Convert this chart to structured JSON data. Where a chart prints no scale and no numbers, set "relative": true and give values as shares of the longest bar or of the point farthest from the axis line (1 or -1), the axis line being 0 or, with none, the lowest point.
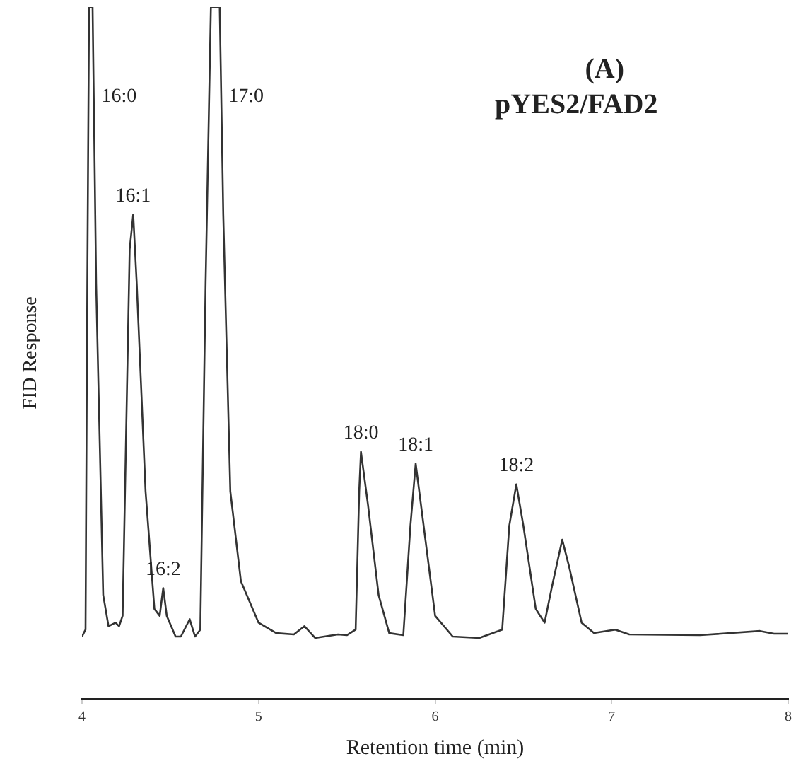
{
  "chart_data": {
    "type": "line",
    "relative": true,
    "title": "(A)",
    "subtitle": "pYES2/FAD2",
    "xlabel": "Retention time (min)",
    "ylabel": "FID Response",
    "xlim": [
      4,
      8
    ],
    "xticks": [
      4,
      5,
      6,
      7,
      8
    ],
    "x": [
      4.0,
      4.02,
      4.03,
      4.04,
      4.06,
      4.08,
      4.12,
      4.15,
      4.19,
      4.21,
      4.23,
      4.27,
      4.29,
      4.31,
      4.36,
      4.41,
      4.44,
      4.46,
      4.48,
      4.53,
      4.56,
      4.61,
      4.64,
      4.67,
      4.7,
      4.73,
      4.78,
      4.8,
      4.84,
      4.9,
      5.0,
      5.1,
      5.2,
      5.26,
      5.32,
      5.45,
      5.5,
      5.55,
      5.57,
      5.58,
      5.62,
      5.68,
      5.74,
      5.82,
      5.86,
      5.89,
      5.93,
      6.0,
      6.1,
      6.25,
      6.38,
      6.42,
      6.46,
      6.5,
      6.57,
      6.62,
      6.66,
      6.72,
      6.76,
      6.83,
      6.9,
      7.02,
      7.1,
      7.5,
      7.84,
      7.92,
      8.0
    ],
    "series": [
      {
        "color": "#333333",
        "values": [
          0.09,
          0.1,
          0.6,
          1,
          1,
          0.6,
          0.15,
          0.105,
          0.11,
          0.105,
          0.12,
          0.65,
          0.7,
          0.6,
          0.3,
          0.13,
          0.12,
          0.16,
          0.12,
          0.09,
          0.09,
          0.115,
          0.09,
          0.1,
          0.6,
          1,
          1,
          0.7,
          0.3,
          0.17,
          0.11,
          0.095,
          0.093,
          0.105,
          0.088,
          0.093,
          0.092,
          0.1,
          0.3,
          0.357,
          0.28,
          0.15,
          0.095,
          0.092,
          0.25,
          0.34,
          0.26,
          0.12,
          0.09,
          0.088,
          0.1,
          0.25,
          0.31,
          0.25,
          0.13,
          0.11,
          0.16,
          0.23,
          0.19,
          0.11,
          0.095,
          0.1,
          0.093,
          0.092,
          0.098,
          0.094,
          0.094
        ]
      }
    ],
    "annotations": [
      {
        "text": "16:0",
        "x": 4.07,
        "y": 0.87
      },
      {
        "text": "16:1",
        "x": 4.29,
        "y": 0.7
      },
      {
        "text": "16:2",
        "x": 4.46,
        "y": 0.16
      },
      {
        "text": "17:0",
        "x": 4.79,
        "y": 0.87
      },
      {
        "text": "18:0",
        "x": 5.58,
        "y": 0.357
      },
      {
        "text": "18:1",
        "x": 5.89,
        "y": 0.34
      },
      {
        "text": "18:2",
        "x": 6.46,
        "y": 0.31
      }
    ]
  }
}
